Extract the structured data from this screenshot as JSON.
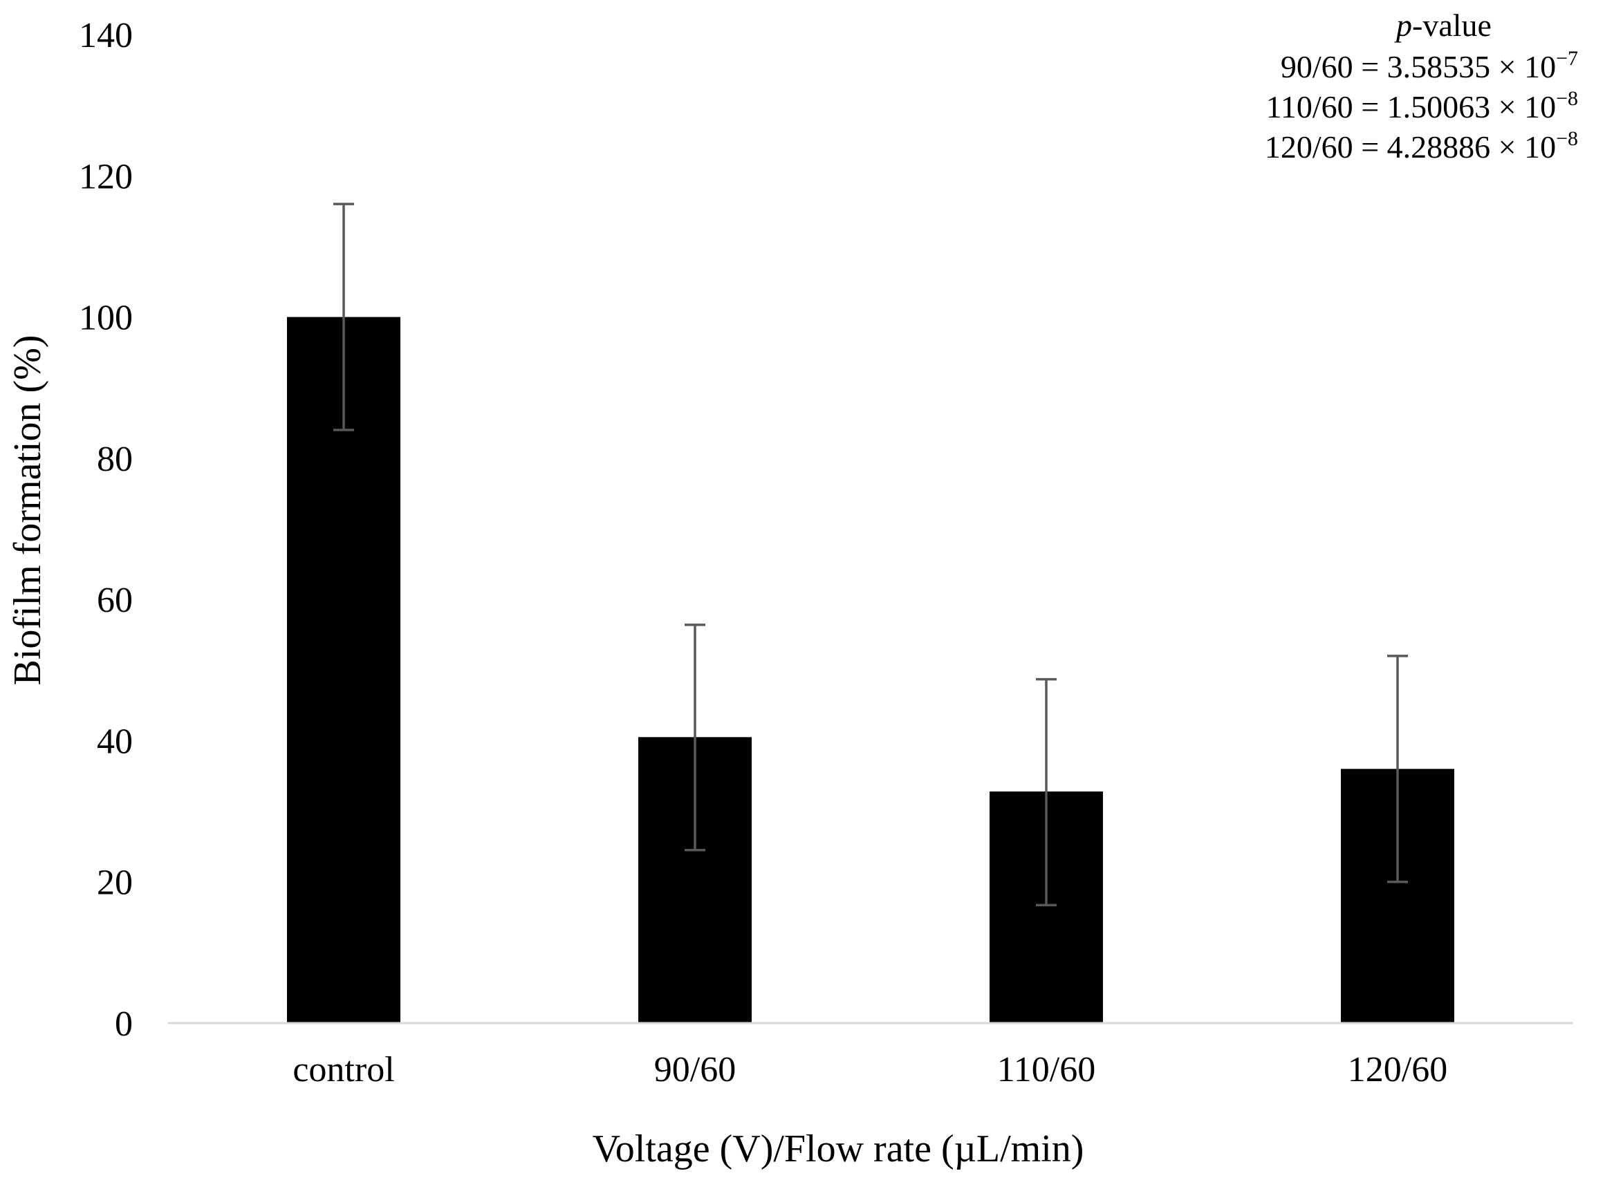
{
  "chart_data": {
    "type": "bar",
    "categories": [
      "control",
      "90/60",
      "110/60",
      "120/60"
    ],
    "values": [
      100,
      40.5,
      32.8,
      36.0
    ],
    "error_low": [
      84,
      24.5,
      16.7,
      20.0
    ],
    "error_high": [
      116,
      56.4,
      48.7,
      52.0
    ],
    "xlabel": "Voltage (V)/Flow rate (µL/min)",
    "ylabel": "Biofilm formation (%)",
    "ylim": [
      0,
      140
    ],
    "yticks": [
      0,
      20,
      40,
      60,
      80,
      100,
      120,
      140
    ],
    "ytick_labels": [
      "0",
      "20",
      "40",
      "60",
      "80",
      "100",
      "120",
      "140"
    ],
    "grid": false,
    "colors": {
      "bar": "#000000",
      "error": "#595959",
      "axis": "#d9d9d9"
    },
    "annotation": {
      "title_italic": "p",
      "title_rest": "-value",
      "lines": [
        {
          "label": "90/60",
          "eq": " = 3.58535 × 10",
          "exp": "−7"
        },
        {
          "label": "110/60",
          "eq": " = 1.50063 × 10",
          "exp": "−8"
        },
        {
          "label": "120/60",
          "eq": " = 4.28886 × 10",
          "exp": "−8"
        }
      ]
    }
  }
}
